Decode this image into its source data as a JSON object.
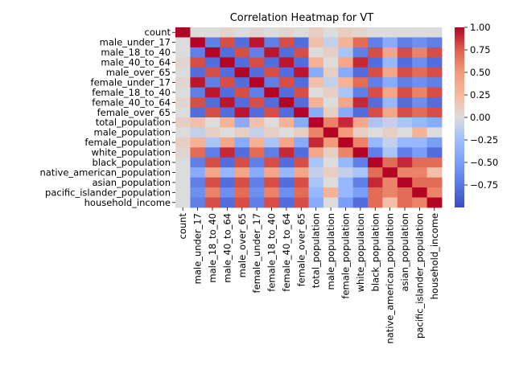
{
  "chart_data": {
    "type": "heatmap",
    "title": "Correlation Heatmap for VT",
    "labels": [
      "count",
      "male_under_17",
      "male_18_to_40",
      "male_40_to_64",
      "male_over_65",
      "female_under_17",
      "female_18_to_40",
      "female_40_to_64",
      "female_over_65",
      "total_population",
      "male_population",
      "female_population",
      "white_population",
      "black_population",
      "native_american_population",
      "asian_population",
      "pacific_islander_population",
      "household_income"
    ],
    "colormap": "coolwarm",
    "vmin": -1.0,
    "vmax": 1.0,
    "colorbar_ticks": [
      "1.00",
      "0.75",
      "0.50",
      "0.25",
      "0.00",
      "−0.25",
      "−0.50",
      "−0.75"
    ],
    "colorbar_tick_values": [
      1.0,
      0.75,
      0.5,
      0.25,
      0.0,
      -0.25,
      -0.5,
      -0.75
    ],
    "values": [
      [
        1.0,
        0.0,
        0.0,
        0.05,
        0.0,
        0.05,
        0.0,
        0.05,
        0.0,
        0.1,
        0.0,
        0.1,
        0.05,
        0.0,
        0.0,
        0.0,
        0.0,
        0.0
      ],
      [
        0.0,
        1.0,
        -0.7,
        0.8,
        -0.8,
        0.95,
        -0.7,
        0.8,
        -0.8,
        0.2,
        -0.1,
        0.3,
        0.7,
        -0.7,
        -0.4,
        -0.7,
        -0.6,
        -0.7
      ],
      [
        0.0,
        -0.7,
        1.0,
        -0.8,
        0.8,
        -0.7,
        0.95,
        -0.8,
        0.8,
        0.0,
        0.1,
        -0.2,
        -0.7,
        0.8,
        0.4,
        0.8,
        0.6,
        0.8
      ],
      [
        0.05,
        0.8,
        -0.8,
        1.0,
        -0.8,
        0.8,
        -0.8,
        0.95,
        -0.8,
        0.3,
        0.0,
        0.4,
        0.9,
        -0.8,
        -0.3,
        -0.8,
        -0.6,
        -0.8
      ],
      [
        0.0,
        -0.8,
        0.8,
        -0.8,
        1.0,
        -0.8,
        0.8,
        -0.8,
        0.95,
        -0.4,
        0.1,
        -0.4,
        -0.8,
        0.8,
        0.4,
        0.8,
        0.7,
        0.8
      ],
      [
        0.05,
        0.95,
        -0.7,
        0.8,
        -0.8,
        1.0,
        -0.7,
        0.8,
        -0.8,
        0.2,
        -0.1,
        0.3,
        0.7,
        -0.7,
        -0.4,
        -0.7,
        -0.6,
        -0.7
      ],
      [
        0.0,
        -0.7,
        0.95,
        -0.8,
        0.8,
        -0.7,
        1.0,
        -0.8,
        0.8,
        0.0,
        0.1,
        -0.2,
        -0.7,
        0.8,
        0.4,
        0.8,
        0.6,
        0.8
      ],
      [
        0.05,
        0.8,
        -0.8,
        0.95,
        -0.8,
        0.8,
        -0.8,
        1.0,
        -0.8,
        0.3,
        0.0,
        0.4,
        0.9,
        -0.8,
        -0.3,
        -0.8,
        -0.6,
        -0.8
      ],
      [
        0.0,
        -0.8,
        0.8,
        -0.8,
        0.95,
        -0.8,
        0.8,
        -0.8,
        1.0,
        -0.4,
        0.1,
        -0.4,
        -0.8,
        0.8,
        0.4,
        0.8,
        0.7,
        0.8
      ],
      [
        0.1,
        0.2,
        0.0,
        0.3,
        -0.4,
        0.2,
        0.0,
        0.3,
        -0.4,
        1.0,
        0.6,
        0.9,
        0.4,
        -0.2,
        -0.1,
        -0.2,
        -0.3,
        -0.4
      ],
      [
        0.0,
        -0.1,
        0.1,
        0.0,
        0.1,
        -0.1,
        0.1,
        0.0,
        0.1,
        0.6,
        1.0,
        0.5,
        0.1,
        0.0,
        0.1,
        0.0,
        0.3,
        0.0
      ],
      [
        0.1,
        0.3,
        -0.2,
        0.4,
        -0.4,
        0.3,
        -0.2,
        0.4,
        -0.4,
        0.9,
        0.5,
        1.0,
        0.6,
        -0.3,
        -0.1,
        -0.3,
        -0.3,
        -0.5
      ],
      [
        0.05,
        0.7,
        -0.7,
        0.9,
        -0.8,
        0.7,
        -0.7,
        0.9,
        -0.8,
        0.4,
        0.1,
        0.6,
        1.0,
        -0.7,
        -0.2,
        -0.7,
        -0.5,
        -0.8
      ],
      [
        0.0,
        -0.7,
        0.8,
        -0.8,
        0.8,
        -0.7,
        0.8,
        -0.8,
        0.8,
        -0.2,
        0.0,
        -0.3,
        -0.7,
        1.0,
        0.7,
        0.9,
        0.7,
        0.7
      ],
      [
        0.0,
        -0.4,
        0.4,
        -0.3,
        0.4,
        -0.4,
        0.4,
        -0.3,
        0.4,
        -0.1,
        0.1,
        -0.1,
        -0.2,
        0.7,
        1.0,
        0.6,
        0.6,
        0.2
      ],
      [
        0.0,
        -0.7,
        0.8,
        -0.8,
        0.8,
        -0.7,
        0.8,
        -0.8,
        0.8,
        -0.2,
        0.0,
        -0.3,
        -0.7,
        0.9,
        0.6,
        1.0,
        0.7,
        0.7
      ],
      [
        0.0,
        -0.6,
        0.6,
        -0.6,
        0.7,
        -0.6,
        0.6,
        -0.6,
        0.7,
        -0.3,
        0.3,
        -0.3,
        -0.5,
        0.7,
        0.6,
        0.7,
        1.0,
        0.6
      ],
      [
        0.0,
        -0.7,
        0.8,
        -0.8,
        0.8,
        -0.7,
        0.8,
        -0.8,
        0.8,
        -0.4,
        0.0,
        -0.5,
        -0.8,
        0.7,
        0.2,
        0.7,
        0.6,
        1.0
      ]
    ]
  }
}
